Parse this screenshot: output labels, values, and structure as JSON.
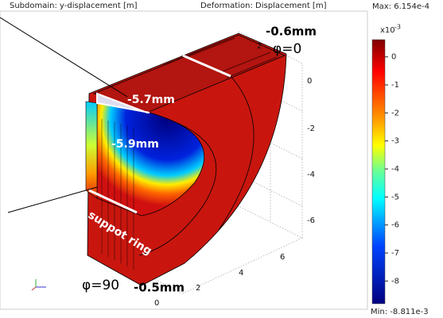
{
  "header": {
    "subdomain": "Subdomain: y-displacement [m]",
    "deformation": "Deformation: Displacement [m]"
  },
  "colorbar": {
    "max_label": "Max: 6.154e-4",
    "min_label": "Min: -8.811e-3",
    "scale_base": "x10",
    "scale_exponent": "-3",
    "range": [
      -8.811,
      0.6154
    ],
    "ticks": [
      0,
      -1,
      -2,
      -3,
      -4,
      -5,
      -6,
      -7,
      -8
    ]
  },
  "annotations": {
    "top_disp": "-0.6mm",
    "phi_top": "φ=0",
    "inner_top": "-5.7mm",
    "inner_mid": "-5.9mm",
    "ring": "suppot ring",
    "phi_bottom": "φ=90",
    "bottom_disp": "-0.5mm"
  },
  "axis_labels": {
    "vertical": [
      "2",
      "0",
      "-2",
      "-4",
      "-6"
    ],
    "horizontal": [
      "0",
      "2",
      "4",
      "6"
    ]
  }
}
